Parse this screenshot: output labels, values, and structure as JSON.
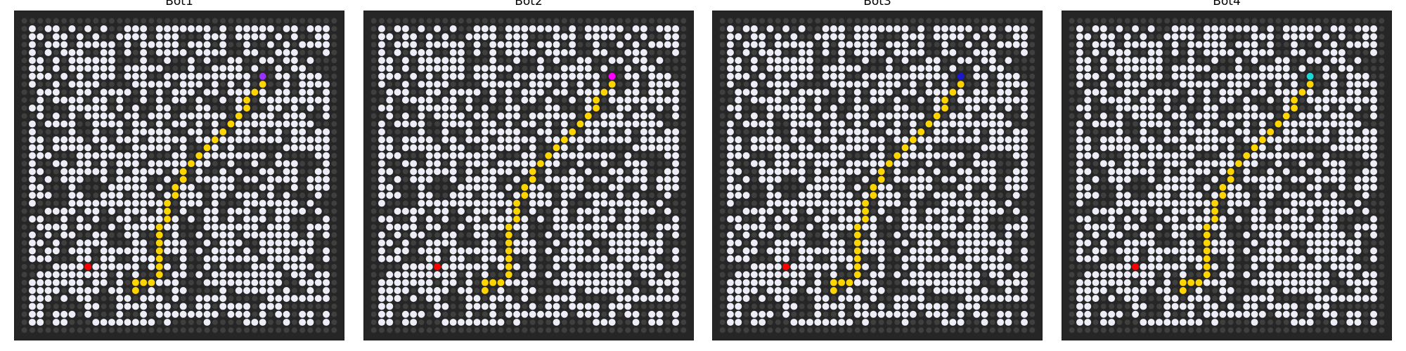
{
  "grid_size": 40,
  "colors": {
    "background": "#262626",
    "blocked_cell": "#3f3f3f",
    "open_cell": "#ededf8",
    "path": "#ffd500",
    "target": "#ff0000",
    "border": "#1a1a1a"
  },
  "path_cells": [
    [
      34,
      14
    ],
    [
      33,
      14
    ],
    [
      33,
      15
    ],
    [
      33,
      16
    ],
    [
      32,
      17
    ],
    [
      31,
      17
    ],
    [
      30,
      17
    ],
    [
      29,
      17
    ],
    [
      28,
      17
    ],
    [
      27,
      17
    ],
    [
      26,
      17
    ],
    [
      25,
      18
    ],
    [
      24,
      18
    ],
    [
      23,
      18
    ],
    [
      22,
      19
    ],
    [
      21,
      19
    ],
    [
      20,
      20
    ],
    [
      19,
      20
    ],
    [
      18,
      21
    ],
    [
      17,
      22
    ],
    [
      16,
      23
    ],
    [
      15,
      24
    ],
    [
      14,
      25
    ],
    [
      13,
      26
    ],
    [
      12,
      27
    ],
    [
      11,
      28
    ],
    [
      10,
      28
    ],
    [
      9,
      29
    ],
    [
      8,
      30
    ],
    [
      7,
      30
    ]
  ],
  "target_cell": [
    31,
    8
  ],
  "panels": [
    {
      "title": "Bot1",
      "bot_color": "#9b30ff"
    },
    {
      "title": "Bot2",
      "bot_color": "#ff00ff"
    },
    {
      "title": "Bot3",
      "bot_color": "#1a1acc"
    },
    {
      "title": "Bot4",
      "bot_color": "#18d8d8"
    }
  ]
}
